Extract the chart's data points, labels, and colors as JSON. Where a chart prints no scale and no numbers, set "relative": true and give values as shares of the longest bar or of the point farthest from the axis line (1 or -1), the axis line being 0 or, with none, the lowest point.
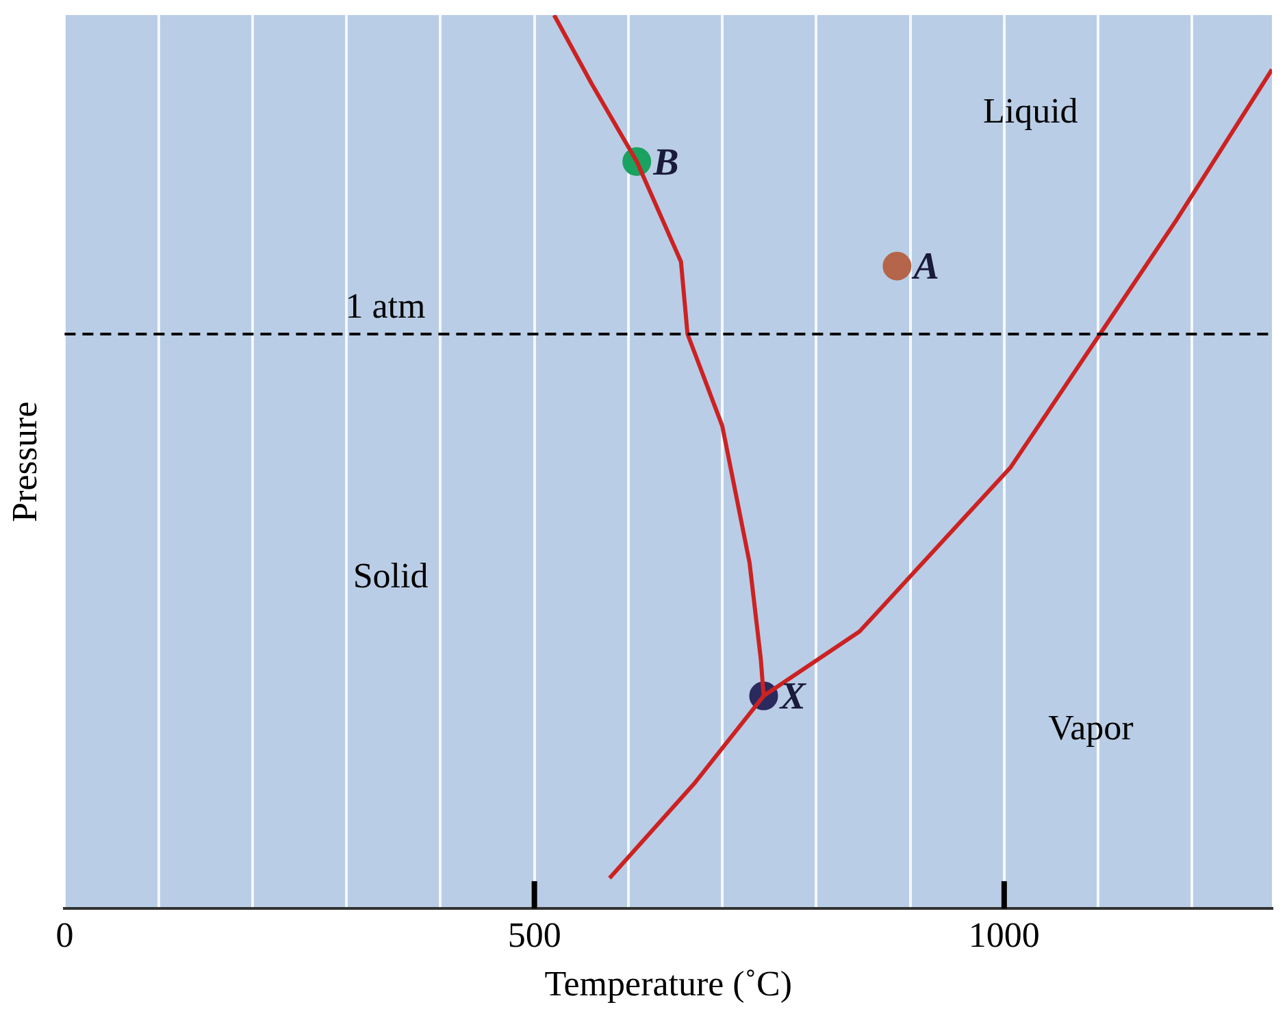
{
  "chart_data": {
    "type": "line",
    "relative": true,
    "xlabel": "Temperature (˚C)",
    "ylabel": "Pressure",
    "xlim": [
      0,
      1285
    ],
    "xticks": [
      0,
      {
        "value": 100,
        "label": null
      },
      {
        "value": 200,
        "label": null
      },
      {
        "value": 300,
        "label": null
      },
      {
        "value": 400,
        "label": null
      },
      500,
      {
        "value": 600,
        "label": null
      },
      {
        "value": 700,
        "label": null
      },
      {
        "value": 800,
        "label": null
      },
      {
        "value": 900,
        "label": null
      },
      1000,
      {
        "value": 1100,
        "label": null
      },
      {
        "value": 1200,
        "label": null
      }
    ],
    "grid": "x",
    "legend": false,
    "series": [
      {
        "type": "line",
        "color": "#cc2222",
        "x": [
          521,
          561,
          609,
          656,
          663,
          700,
          729,
          741,
          744
        ],
        "values": [
          1,
          0.923,
          0.836,
          0.724,
          0.643,
          0.54,
          0.387,
          0.279,
          0.238
        ]
      },
      {
        "type": "line",
        "color": "#cc2222",
        "x": [
          580,
          671,
          744,
          846,
          1007,
          1102,
          1183,
          1285
        ],
        "values": [
          0.034,
          0.141,
          0.238,
          0.31,
          0.494,
          0.643,
          0.77,
          0.939
        ]
      },
      {
        "type": "scatter",
        "name": "B",
        "color": "#1aa260",
        "x": [
          609
        ],
        "values": [
          0.836
        ]
      },
      {
        "type": "scatter",
        "name": "A",
        "color": "#b5654a",
        "x": [
          886
        ],
        "values": [
          0.719
        ]
      },
      {
        "type": "scatter",
        "name": "X",
        "color": "#2a2a5e",
        "x": [
          744
        ],
        "values": [
          0.238
        ]
      }
    ],
    "ref_lines": [
      {
        "axis": "y",
        "value": 0.643,
        "label": "1 atm",
        "color": "#000000",
        "line_style": "dashed"
      }
    ],
    "annotations": [
      "Liquid",
      "Solid",
      "Vapor"
    ]
  }
}
